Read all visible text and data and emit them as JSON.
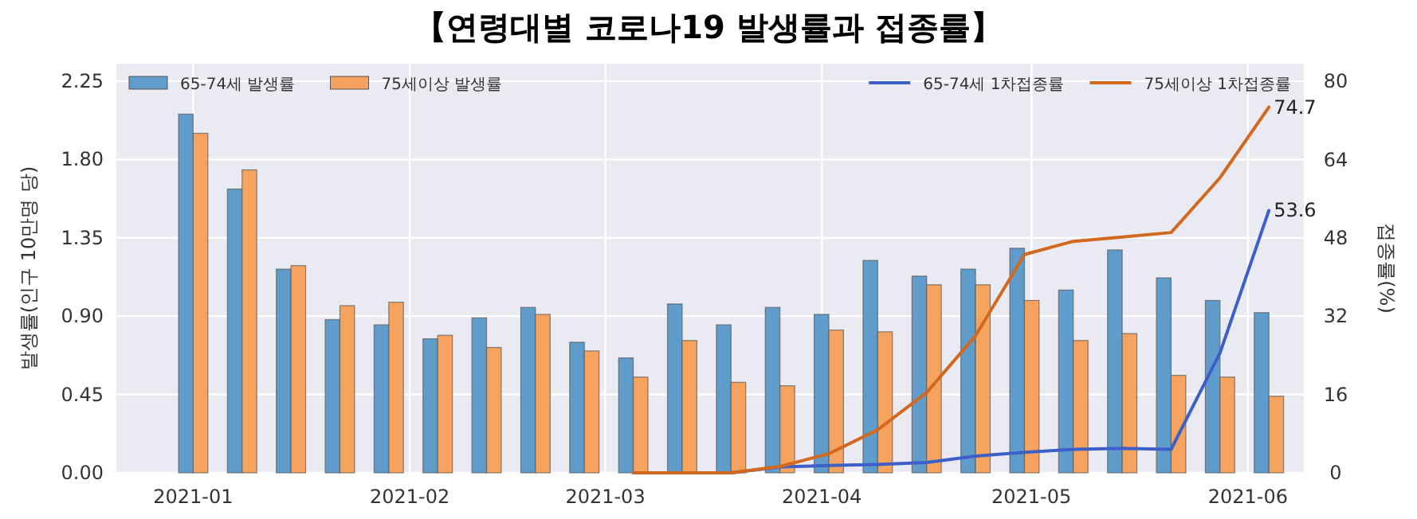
{
  "chart_data": {
    "type": "bar",
    "title": "【연령대별 코로나19 발생률과 접종률】",
    "ylabel": "발생률(인구 10만명 당)",
    "y2label": "접종률(%)",
    "x": [
      "2021-01-01",
      "2021-01-08",
      "2021-01-15",
      "2021-01-22",
      "2021-01-29",
      "2021-02-05",
      "2021-02-12",
      "2021-02-19",
      "2021-02-26",
      "2021-03-05",
      "2021-03-12",
      "2021-03-19",
      "2021-03-26",
      "2021-04-02",
      "2021-04-09",
      "2021-04-16",
      "2021-04-23",
      "2021-04-30",
      "2021-05-07",
      "2021-05-14",
      "2021-05-21",
      "2021-05-28",
      "2021-06-04"
    ],
    "series": [
      {
        "name": "65-74세 발생률",
        "color": "#5f9bcb",
        "values": [
          2.06,
          1.63,
          1.17,
          0.88,
          0.85,
          0.77,
          0.89,
          0.95,
          0.75,
          0.66,
          0.97,
          0.85,
          0.95,
          0.91,
          1.22,
          1.13,
          1.17,
          1.29,
          1.05,
          1.28,
          1.12,
          0.99,
          0.92
        ]
      },
      {
        "name": "75세이상 발생률",
        "color": "#f5a35e",
        "values": [
          1.95,
          1.74,
          1.19,
          0.96,
          0.98,
          0.79,
          0.72,
          0.91,
          0.7,
          0.55,
          0.76,
          0.52,
          0.5,
          0.82,
          0.81,
          1.08,
          1.08,
          0.99,
          0.76,
          0.8,
          0.56,
          0.55,
          0.44
        ]
      },
      {
        "name": "65-74세 1차접종률",
        "type": "line",
        "axis": "y2",
        "color": "#3f5fc8",
        "x": [
          "2021-03-05",
          "2021-03-12",
          "2021-03-19",
          "2021-03-26",
          "2021-04-02",
          "2021-04-09",
          "2021-04-16",
          "2021-04-23",
          "2021-04-30",
          "2021-05-07",
          "2021-05-14",
          "2021-05-21",
          "2021-05-28",
          "2021-06-04"
        ],
        "values": [
          0,
          0,
          0,
          1.2,
          1.5,
          1.7,
          2.1,
          3.4,
          4.2,
          4.8,
          5,
          4.8,
          24.5,
          53.6
        ],
        "value_labels": [
          null,
          null,
          null,
          null,
          null,
          null,
          null,
          null,
          null,
          null,
          null,
          null,
          null,
          "53.6"
        ]
      },
      {
        "name": "75세이상 1차접종률",
        "type": "line",
        "axis": "y2",
        "color": "#d2691e",
        "x": [
          "2021-03-05",
          "2021-03-12",
          "2021-03-19",
          "2021-03-26",
          "2021-04-02",
          "2021-04-09",
          "2021-04-16",
          "2021-04-23",
          "2021-04-30",
          "2021-05-07",
          "2021-05-14",
          "2021-05-21",
          "2021-05-28",
          "2021-06-04"
        ],
        "values": [
          0,
          0,
          0,
          1.3,
          3.9,
          8.8,
          16.4,
          28,
          44.6,
          47.3,
          48.2,
          49.1,
          60.3,
          74.7
        ],
        "value_labels": [
          null,
          null,
          null,
          null,
          null,
          null,
          null,
          null,
          null,
          null,
          null,
          null,
          null,
          "74.7"
        ]
      }
    ],
    "xlim": [
      "2020-12-21",
      "2021-06-09"
    ],
    "xticks": [
      "2021-01",
      "2021-02",
      "2021-03",
      "2021-04",
      "2021-05",
      "2021-06"
    ],
    "ylim": [
      0,
      2.35
    ],
    "yticks": [
      {
        "value": 0,
        "label": "0.00"
      },
      {
        "value": 0.45,
        "label": "0.45"
      },
      {
        "value": 0.9,
        "label": "0.90"
      },
      {
        "value": 1.35,
        "label": "1.35"
      },
      {
        "value": 1.8,
        "label": "1.80"
      },
      {
        "value": 2.25,
        "label": "2.25"
      }
    ],
    "y2lim": [
      0,
      83.6
    ],
    "y2ticks": [
      0,
      16,
      32,
      48,
      64,
      80
    ],
    "grid": true,
    "legend": "top"
  }
}
